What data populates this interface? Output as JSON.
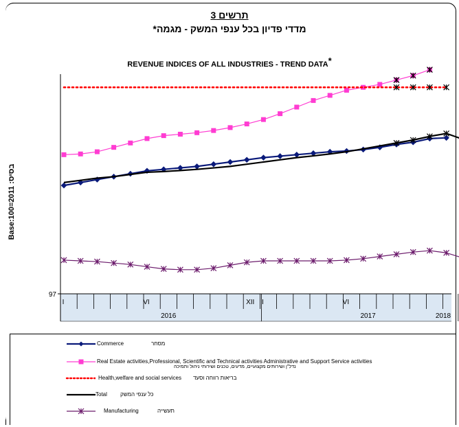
{
  "title_he_line1": "תרשים 3",
  "title_he_line2": "מדדי פדיון בכל ענפי המשק - מגמה*",
  "title_en": "REVENUE INDICES OF ALL INDUSTRIES - TREND DATA",
  "title_en_mark": "*",
  "ylabel": "Base:100=2011 :בסיס",
  "colors": {
    "commerce": "#0a1a7a",
    "real_estate": "#ff3cd2",
    "health": "#ff0000",
    "total": "#000000",
    "manufacturing": "#6b1a6b",
    "axis_band": "#dbe7f3"
  },
  "legend": [
    {
      "key": "commerce",
      "en": "Commerce",
      "he": "מסחר",
      "marker": "diamond"
    },
    {
      "key": "real_estate",
      "en": "Real Estate activities,Professional, Scientific and Technical activities Administrative and Support Service activities",
      "he": "נדל\"ן ושירותים מקצועיים, מדעים, טכנים ושירותי ניהול ותמיכה",
      "marker": "square"
    },
    {
      "key": "health",
      "en": "Health,welfare and social services",
      "he": "בריאות רווחה וסעד",
      "marker": "dots"
    },
    {
      "key": "total",
      "en": "Total",
      "he": "כל ענפי המשק",
      "marker": "none"
    },
    {
      "key": "manufacturing",
      "en": "Manufacturing",
      "he": "תעשייה",
      "marker": "star"
    }
  ],
  "chart_data": {
    "type": "line",
    "x": [
      "2016-01",
      "2016-02",
      "2016-03",
      "2016-04",
      "2016-05",
      "2016-06",
      "2016-07",
      "2016-08",
      "2016-09",
      "2016-10",
      "2016-11",
      "2016-12",
      "2017-01",
      "2017-02",
      "2017-03",
      "2017-04",
      "2017-05",
      "2017-06",
      "2017-07",
      "2017-08",
      "2017-09",
      "2017-10",
      "2017-11",
      "2017-12",
      "2018-01"
    ],
    "x_tick_labels": [
      "I",
      "VI",
      "XII",
      "I",
      "VI",
      "I"
    ],
    "x_tick_positions": [
      "2016-01",
      "2016-06",
      "2016-12",
      "2017-01",
      "2017-06",
      "2018-01"
    ],
    "year_labels": [
      "2016",
      "2017",
      "2018"
    ],
    "ylim": [
      97,
      112
    ],
    "y_tick_labels": [
      "97"
    ],
    "grid": false,
    "series": [
      {
        "key": "commerce",
        "name": "Commerce",
        "values": [
          104.4,
          104.6,
          104.8,
          105.0,
          105.2,
          105.4,
          105.5,
          105.6,
          105.7,
          105.85,
          106.0,
          106.15,
          106.3,
          106.4,
          106.5,
          106.6,
          106.7,
          106.75,
          106.85,
          107.0,
          107.2,
          107.35,
          107.6,
          107.65,
          null
        ]
      },
      {
        "key": "real_estate",
        "name": "Real Estate activities,Professional, Scientific and Technical activities Administrative and Support Service activities",
        "values": [
          106.5,
          106.55,
          106.7,
          107.0,
          107.3,
          107.6,
          107.8,
          107.9,
          108.0,
          108.15,
          108.35,
          108.6,
          108.9,
          109.3,
          109.75,
          110.2,
          110.55,
          110.9,
          111.1,
          111.3,
          111.6,
          111.9,
          112.3,
          null,
          null
        ]
      },
      {
        "key": "health",
        "name": "Health,welfare and social services",
        "values": [
          111.1,
          111.1,
          111.1,
          111.1,
          111.1,
          111.1,
          111.1,
          111.1,
          111.1,
          111.1,
          111.1,
          111.1,
          111.1,
          111.1,
          111.1,
          111.1,
          111.1,
          111.1,
          111.1,
          111.1,
          111.1,
          111.1,
          111.1,
          111.1,
          null
        ]
      },
      {
        "key": "total",
        "name": "Total",
        "values": [
          104.6,
          104.75,
          104.9,
          105.0,
          105.15,
          105.3,
          105.35,
          105.42,
          105.5,
          105.6,
          105.7,
          105.85,
          106.0,
          106.15,
          106.3,
          106.42,
          106.55,
          106.7,
          106.9,
          107.1,
          107.3,
          107.5,
          107.75,
          107.95,
          107.55
        ]
      },
      {
        "key": "manufacturing",
        "name": "Manufacturing",
        "values": [
          99.3,
          99.25,
          99.2,
          99.1,
          99.0,
          98.85,
          98.7,
          98.65,
          98.65,
          98.75,
          98.95,
          99.15,
          99.25,
          99.25,
          99.25,
          99.25,
          99.25,
          99.3,
          99.4,
          99.55,
          99.7,
          99.85,
          99.95,
          99.8,
          99.45
        ]
      }
    ]
  }
}
